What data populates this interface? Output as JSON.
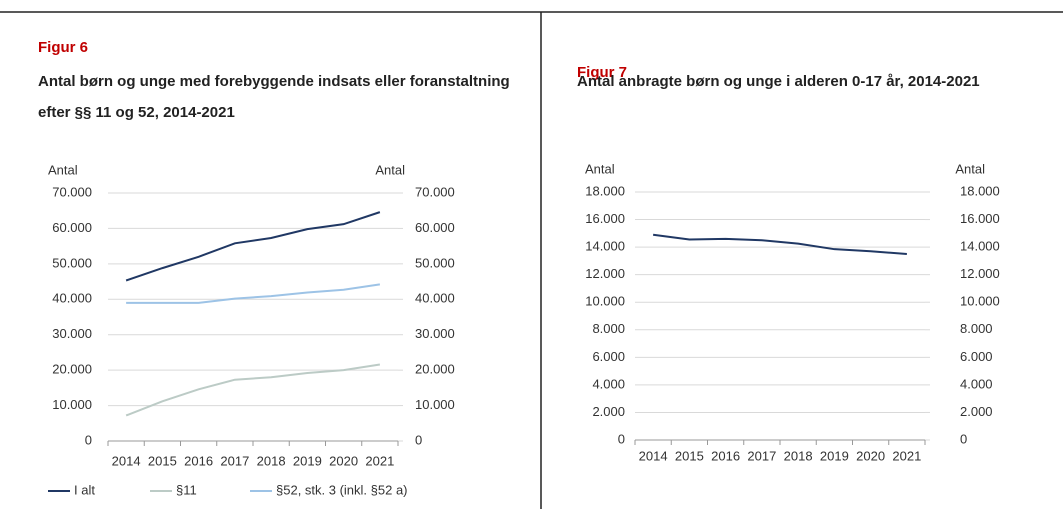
{
  "chart_data": [
    {
      "type": "line",
      "figure_label": "Figur 6",
      "title": "Antal børn og unge med forebyggende indsats eller foranstaltning efter §§ 11 og 52, 2014-2021",
      "ylabel": "Antal",
      "y2label": "Antal",
      "categories": [
        "2014",
        "2015",
        "2016",
        "2017",
        "2018",
        "2019",
        "2020",
        "2021"
      ],
      "series": [
        {
          "name": "I alt",
          "color": "#203864",
          "values": [
            45300,
            48800,
            52000,
            55800,
            57300,
            59800,
            61200,
            64600
          ]
        },
        {
          "name": "§11",
          "color": "#bccbc6",
          "values": [
            7200,
            11200,
            14600,
            17300,
            18000,
            19200,
            20000,
            21600
          ]
        },
        {
          "name": "§52, stk. 3 (inkl. §52 a)",
          "color": "#9dc3e6",
          "values": [
            39000,
            39000,
            39000,
            40200,
            40900,
            41900,
            42700,
            44200
          ]
        }
      ],
      "ylim": [
        0,
        70000
      ],
      "yticks": [
        0,
        {
          "value": 10000,
          "label": "10.000"
        },
        {
          "value": 20000,
          "label": "20.000"
        },
        {
          "value": 30000,
          "label": "30.000"
        },
        {
          "value": 40000,
          "label": "40.000"
        },
        {
          "value": 50000,
          "label": "50.000"
        },
        {
          "value": 60000,
          "label": "60.000"
        },
        {
          "value": 70000,
          "label": "70.000"
        }
      ],
      "y2lim": [
        0,
        70000
      ],
      "y2ticks": [
        0,
        {
          "value": 10000,
          "label": "10.000"
        },
        {
          "value": 20000,
          "label": "20.000"
        },
        {
          "value": 30000,
          "label": "30.000"
        },
        {
          "value": 40000,
          "label": "40.000"
        },
        {
          "value": 50000,
          "label": "50.000"
        },
        {
          "value": 60000,
          "label": "60.000"
        },
        {
          "value": 70000,
          "label": "70.000"
        }
      ],
      "grid": true,
      "legend": "bottom"
    },
    {
      "type": "line",
      "figure_label": "Figur 7",
      "title": "Antal anbragte børn og unge i alderen 0-17 år, 2014-2021",
      "ylabel": "Antal",
      "y2label": "Antal",
      "categories": [
        "2014",
        "2015",
        "2016",
        "2017",
        "2018",
        "2019",
        "2020",
        "2021"
      ],
      "values": [
        14900,
        14550,
        14600,
        14500,
        14250,
        13850,
        13700,
        13500
      ],
      "color": "#203864",
      "ylim": [
        0,
        18000
      ],
      "yticks": [
        0,
        {
          "value": 2000,
          "label": "2.000"
        },
        {
          "value": 4000,
          "label": "4.000"
        },
        {
          "value": 6000,
          "label": "6.000"
        },
        {
          "value": 8000,
          "label": "8.000"
        },
        {
          "value": 10000,
          "label": "10.000"
        },
        {
          "value": 12000,
          "label": "12.000"
        },
        {
          "value": 14000,
          "label": "14.000"
        },
        {
          "value": 16000,
          "label": "16.000"
        },
        {
          "value": 18000,
          "label": "18.000"
        }
      ],
      "y2lim": [
        0,
        18000
      ],
      "y2ticks": [
        0,
        {
          "value": 2000,
          "label": "2.000"
        },
        {
          "value": 4000,
          "label": "4.000"
        },
        {
          "value": 6000,
          "label": "6.000"
        },
        {
          "value": 8000,
          "label": "8.000"
        },
        {
          "value": 10000,
          "label": "10.000"
        },
        {
          "value": 12000,
          "label": "12.000"
        },
        {
          "value": 14000,
          "label": "14.000"
        },
        {
          "value": 16000,
          "label": "16.000"
        },
        {
          "value": 18000,
          "label": "18.000"
        }
      ],
      "grid": true
    }
  ]
}
